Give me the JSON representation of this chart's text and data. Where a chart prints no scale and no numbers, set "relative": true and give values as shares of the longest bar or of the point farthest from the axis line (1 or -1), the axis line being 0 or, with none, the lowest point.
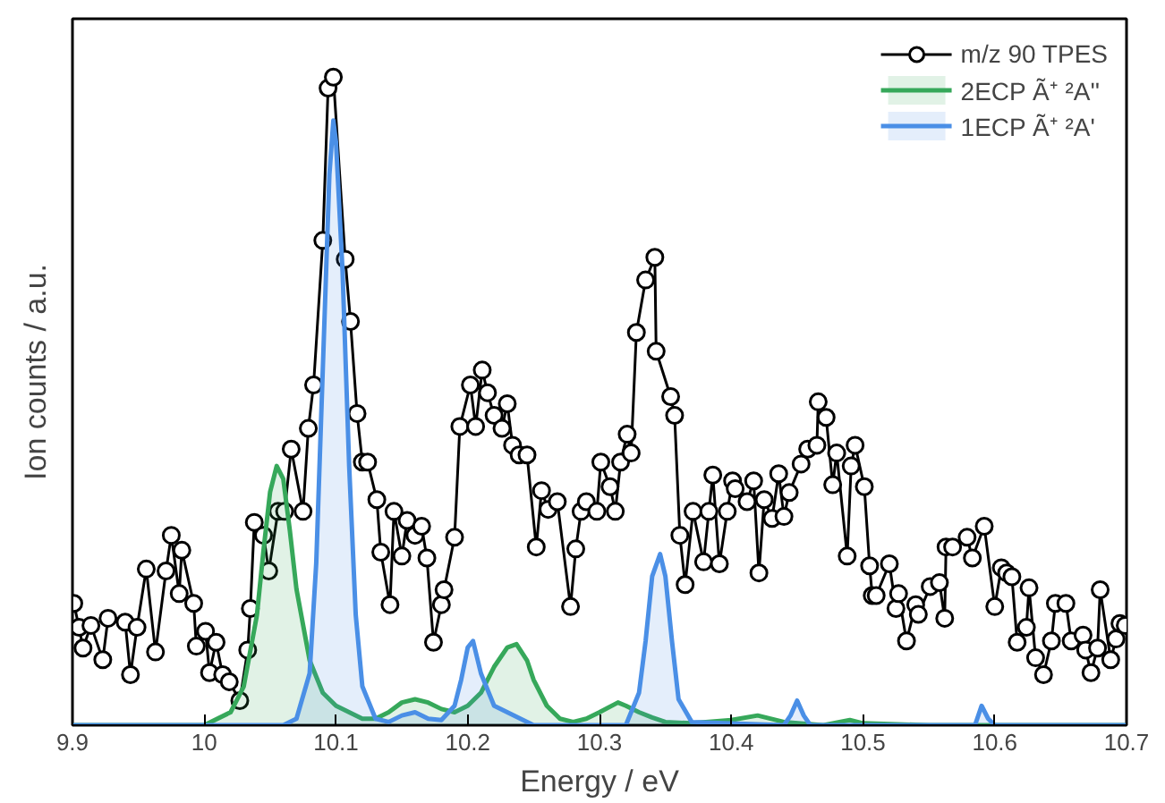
{
  "chart_data": {
    "type": "line",
    "relative": true,
    "xlabel": "Energy / eV",
    "ylabel": "Ion counts / a.u.",
    "xlim": [
      9.9,
      10.7
    ],
    "xticks": [
      9.9,
      10.0,
      10.1,
      10.2,
      10.3,
      10.4,
      10.5,
      10.6,
      10.7
    ],
    "legend": "top right",
    "grid": false,
    "series": [
      {
        "name": "m/z 90 TPES",
        "marker": "circle",
        "color": "#000000",
        "x": [
          9.901,
          9.905,
          9.908,
          9.914,
          9.923,
          9.927,
          9.94,
          9.944,
          9.949,
          9.956,
          9.963,
          9.971,
          9.975,
          9.981,
          9.983,
          9.992,
          9.994,
          10.001,
          10.004,
          10.009,
          10.014,
          10.019,
          10.027,
          10.033,
          10.035,
          10.038,
          10.045,
          10.049,
          10.056,
          10.061,
          10.066,
          10.075,
          10.079,
          10.083,
          10.09,
          10.094,
          10.098,
          10.107,
          10.111,
          10.116,
          10.12,
          10.124,
          10.131,
          10.134,
          10.141,
          10.144,
          10.15,
          10.154,
          10.16,
          10.165,
          10.169,
          10.174,
          10.18,
          10.182,
          10.19,
          10.194,
          10.202,
          10.206,
          10.211,
          10.215,
          10.22,
          10.226,
          10.23,
          10.234,
          10.239,
          10.245,
          10.252,
          10.256,
          10.261,
          10.268,
          10.278,
          10.282,
          10.286,
          10.29,
          10.298,
          10.301,
          10.308,
          10.312,
          10.316,
          10.321,
          10.324,
          10.328,
          10.335,
          10.342,
          10.343,
          10.354,
          10.357,
          10.361,
          10.365,
          10.371,
          10.379,
          10.383,
          10.386,
          10.391,
          10.397,
          10.401,
          10.403,
          10.412,
          10.417,
          10.421,
          10.425,
          10.431,
          10.436,
          10.44,
          10.444,
          10.453,
          10.458,
          10.465,
          10.466,
          10.472,
          10.477,
          10.48,
          10.488,
          10.491,
          10.494,
          10.501,
          10.505,
          10.507,
          10.51,
          10.52,
          10.525,
          10.527,
          10.533,
          10.54,
          10.542,
          10.551,
          10.558,
          10.562,
          10.563,
          10.568,
          10.579,
          10.583,
          10.592,
          10.6,
          10.605,
          10.609,
          10.613,
          10.617,
          10.624,
          10.626,
          10.631,
          10.637,
          10.643,
          10.646,
          10.654,
          10.658,
          10.667,
          10.669,
          10.673,
          10.678,
          10.68,
          10.688,
          10.692,
          10.695,
          10.699
        ],
        "values": [
          0.188,
          0.151,
          0.119,
          0.154,
          0.101,
          0.165,
          0.159,
          0.078,
          0.151,
          0.241,
          0.113,
          0.238,
          0.293,
          0.203,
          0.27,
          0.188,
          0.122,
          0.145,
          0.081,
          0.128,
          0.078,
          0.067,
          0.038,
          0.116,
          0.18,
          0.313,
          0.293,
          0.238,
          0.33,
          0.33,
          0.426,
          0.33,
          0.458,
          0.525,
          0.748,
          0.983,
          1.0,
          0.719,
          0.623,
          0.481,
          0.406,
          0.406,
          0.348,
          0.267,
          0.186,
          0.33,
          0.261,
          0.316,
          0.293,
          0.307,
          0.258,
          0.128,
          0.186,
          0.209,
          0.29,
          0.461,
          0.525,
          0.461,
          0.548,
          0.513,
          0.478,
          0.458,
          0.496,
          0.432,
          0.417,
          0.417,
          0.275,
          0.362,
          0.333,
          0.345,
          0.183,
          0.272,
          0.33,
          0.345,
          0.33,
          0.406,
          0.368,
          0.33,
          0.406,
          0.449,
          0.42,
          0.606,
          0.687,
          0.722,
          0.577,
          0.507,
          0.478,
          0.293,
          0.217,
          0.33,
          0.252,
          0.33,
          0.386,
          0.249,
          0.33,
          0.377,
          0.365,
          0.345,
          0.377,
          0.235,
          0.348,
          0.319,
          0.388,
          0.322,
          0.359,
          0.403,
          0.426,
          0.432,
          0.499,
          0.475,
          0.371,
          0.42,
          0.261,
          0.4,
          0.432,
          0.368,
          0.246,
          0.2,
          0.2,
          0.249,
          0.18,
          0.203,
          0.13,
          0.186,
          0.171,
          0.214,
          0.22,
          0.165,
          0.275,
          0.275,
          0.29,
          0.258,
          0.307,
          0.183,
          0.243,
          0.235,
          0.229,
          0.128,
          0.151,
          0.212,
          0.104,
          0.078,
          0.13,
          0.188,
          0.188,
          0.13,
          0.139,
          0.116,
          0.081,
          0.119,
          0.209,
          0.101,
          0.133,
          0.157,
          0.154
        ]
      },
      {
        "name": "2ECP Ã⁺ ²A''",
        "type": "area",
        "color": "#36a85a",
        "x": [
          9.9,
          10.0,
          10.02,
          10.03,
          10.04,
          10.045,
          10.05,
          10.055,
          10.06,
          10.065,
          10.07,
          10.08,
          10.09,
          10.1,
          10.11,
          10.12,
          10.13,
          10.14,
          10.15,
          10.16,
          10.17,
          10.18,
          10.19,
          10.2,
          10.21,
          10.22,
          10.23,
          10.237,
          10.245,
          10.25,
          10.26,
          10.27,
          10.28,
          10.29,
          10.3,
          10.314,
          10.32,
          10.33,
          10.34,
          10.35,
          10.37,
          10.4,
          10.42,
          10.44,
          10.47,
          10.49,
          10.5,
          10.55,
          10.7
        ],
        "values": [
          0,
          0,
          0.02,
          0.06,
          0.17,
          0.27,
          0.36,
          0.4,
          0.38,
          0.3,
          0.21,
          0.1,
          0.05,
          0.03,
          0.02,
          0.01,
          0.01,
          0.02,
          0.035,
          0.04,
          0.035,
          0.025,
          0.02,
          0.03,
          0.05,
          0.09,
          0.12,
          0.125,
          0.1,
          0.07,
          0.03,
          0.01,
          0.005,
          0.01,
          0.02,
          0.035,
          0.03,
          0.02,
          0.012,
          0.005,
          0.003,
          0.008,
          0.015,
          0.005,
          0,
          0.008,
          0.003,
          0,
          0
        ]
      },
      {
        "name": "1ECP Ã⁺ ²A'",
        "type": "area",
        "color": "#4a8fe6",
        "x": [
          9.9,
          10.06,
          10.07,
          10.08,
          10.085,
          10.09,
          10.095,
          10.098,
          10.1,
          10.105,
          10.11,
          10.115,
          10.12,
          10.13,
          10.14,
          10.15,
          10.16,
          10.17,
          10.18,
          10.19,
          10.195,
          10.2,
          10.204,
          10.21,
          10.22,
          10.23,
          10.24,
          10.25,
          10.32,
          10.33,
          10.335,
          10.34,
          10.346,
          10.35,
          10.355,
          10.36,
          10.37,
          10.44,
          10.445,
          10.45,
          10.455,
          10.46,
          10.585,
          10.59,
          10.595,
          10.6,
          10.7
        ],
        "values": [
          0,
          0,
          0.01,
          0.08,
          0.25,
          0.55,
          0.85,
          0.933,
          0.9,
          0.7,
          0.4,
          0.17,
          0.06,
          0.01,
          0.005,
          0.015,
          0.02,
          0.01,
          0.008,
          0.03,
          0.07,
          0.12,
          0.13,
          0.08,
          0.03,
          0.02,
          0.01,
          0,
          0,
          0.05,
          0.13,
          0.23,
          0.264,
          0.23,
          0.13,
          0.04,
          0.005,
          0,
          0.015,
          0.038,
          0.015,
          0,
          0,
          0.03,
          0.01,
          0,
          0
        ]
      }
    ]
  }
}
